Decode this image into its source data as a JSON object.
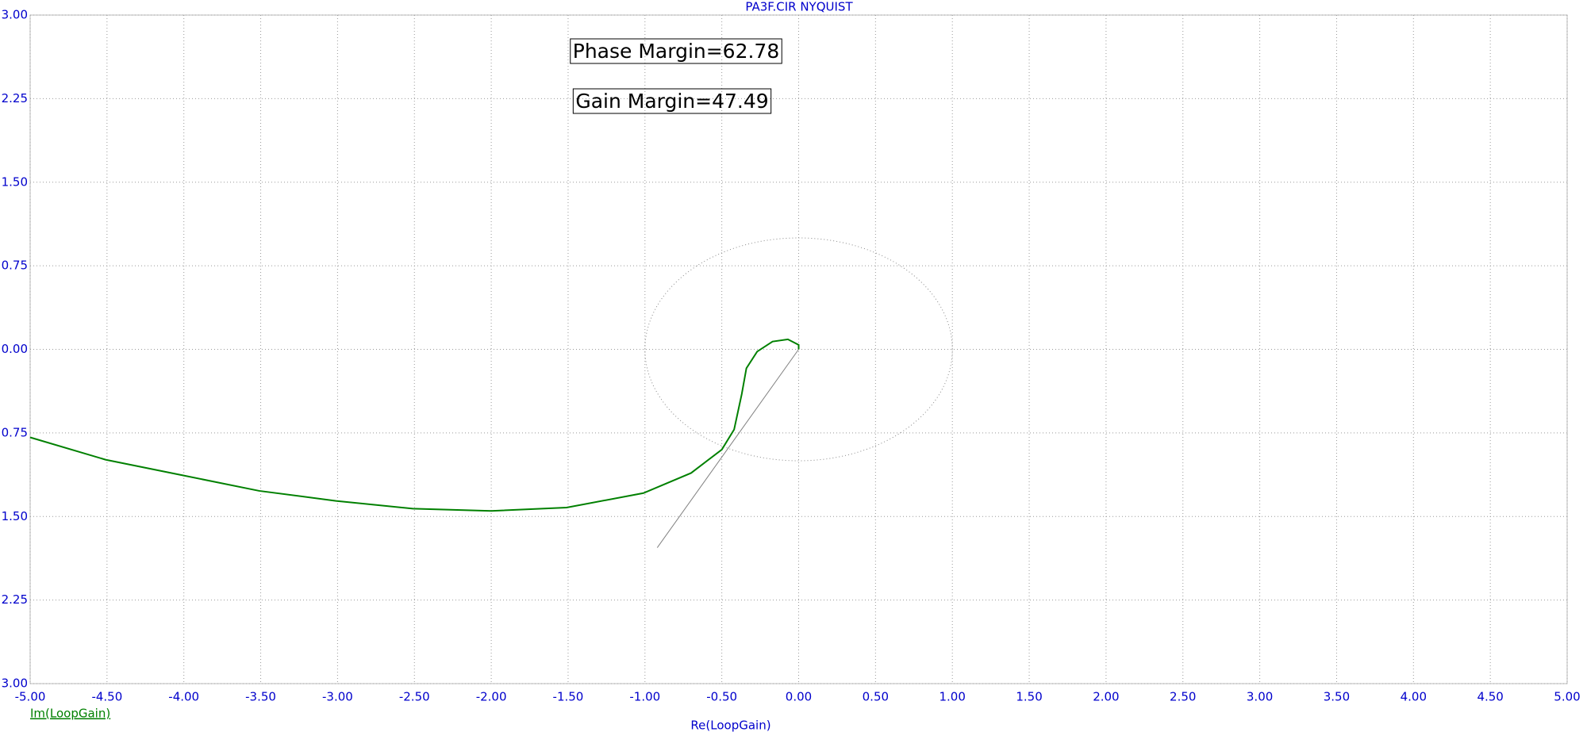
{
  "chart_data": {
    "type": "line",
    "title": "PA3F.CIR NYQUIST",
    "x_label": "Re(LoopGain)",
    "annotations": [
      "Phase Margin=62.78",
      "Gain Margin=47.49"
    ],
    "x": [
      -5.0,
      -4.51,
      -4.01,
      -3.51,
      -3.01,
      -2.51,
      -2.0,
      -1.51,
      -1.01,
      -0.7,
      -0.5,
      -0.42,
      -0.37,
      -0.34,
      -0.27,
      -0.17,
      -0.07,
      0.0,
      0.0
    ],
    "series": [
      {
        "name": "Im(LoopGain)",
        "color": "#008000",
        "values": [
          -0.79,
          -0.99,
          -1.13,
          -1.27,
          -1.36,
          -1.43,
          -1.45,
          -1.42,
          -1.29,
          -1.11,
          -0.9,
          -0.72,
          -0.4,
          -0.17,
          -0.02,
          0.07,
          0.09,
          0.04,
          0.0
        ]
      }
    ],
    "reference_line": {
      "x": [
        0,
        -0.92
      ],
      "y": [
        0,
        -1.78
      ],
      "color": "#808080"
    },
    "circle_radius": 1,
    "xlim": [
      -5,
      5
    ],
    "ylim": [
      -3,
      3
    ],
    "xticks": [
      {
        "value": -5,
        "label": "-5.00"
      },
      {
        "value": -4.5,
        "label": "-4.50"
      },
      {
        "value": -4,
        "label": "-4.00"
      },
      {
        "value": -3.5,
        "label": "-3.50"
      },
      {
        "value": -3,
        "label": "-3.00"
      },
      {
        "value": -2.5,
        "label": "-2.50"
      },
      {
        "value": -2,
        "label": "-2.00"
      },
      {
        "value": -1.5,
        "label": "-1.50"
      },
      {
        "value": -1,
        "label": "-1.00"
      },
      {
        "value": -0.5,
        "label": "-0.50"
      },
      {
        "value": 0,
        "label": "0.00"
      },
      {
        "value": 0.5,
        "label": "0.50"
      },
      {
        "value": 1,
        "label": "1.00"
      },
      {
        "value": 1.5,
        "label": "1.50"
      },
      {
        "value": 2,
        "label": "2.00"
      },
      {
        "value": 2.5,
        "label": "2.50"
      },
      {
        "value": 3,
        "label": "3.00"
      },
      {
        "value": 3.5,
        "label": "3.50"
      },
      {
        "value": 4,
        "label": "4.00"
      },
      {
        "value": 4.5,
        "label": "4.50"
      },
      {
        "value": 5,
        "label": "5.00"
      }
    ],
    "yticks": [
      {
        "value": 3,
        "label": "3.00"
      },
      {
        "value": 2.25,
        "label": "2.25"
      },
      {
        "value": 1.5,
        "label": "1.50"
      },
      {
        "value": 0.75,
        "label": "0.75"
      },
      {
        "value": 0,
        "label": "0.00"
      },
      {
        "value": -0.75,
        "label": "0.75"
      },
      {
        "value": -1.5,
        "label": "1.50"
      },
      {
        "value": -2.25,
        "label": "2.25"
      },
      {
        "value": -3,
        "label": "3.00"
      }
    ],
    "grid": true
  }
}
